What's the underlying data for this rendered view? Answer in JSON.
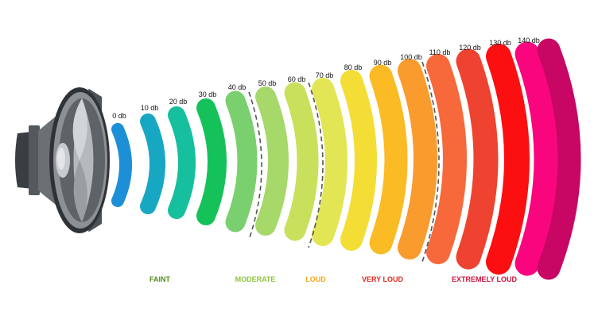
{
  "diagram": {
    "levels": [
      {
        "label": "0 db",
        "color": "#1d8fd6"
      },
      {
        "label": "10 db",
        "color": "#18a7c2"
      },
      {
        "label": "20 db",
        "color": "#16bf9d"
      },
      {
        "label": "30 db",
        "color": "#15c25a"
      },
      {
        "label": "40 db",
        "color": "#7ad06f"
      },
      {
        "label": "50 db",
        "color": "#a6d86a"
      },
      {
        "label": "60 db",
        "color": "#c9e05c"
      },
      {
        "label": "70 db",
        "color": "#e3e654"
      },
      {
        "label": "80 db",
        "color": "#f4dd35"
      },
      {
        "label": "90 db",
        "color": "#fbbb25"
      },
      {
        "label": "100 db",
        "color": "#fa9b2e"
      },
      {
        "label": "110 db",
        "color": "#f7683a"
      },
      {
        "label": "120 db",
        "color": "#ee4330"
      },
      {
        "label": "130 db",
        "color": "#fb0f10"
      },
      {
        "label": "140 db",
        "color": "#f9067e"
      },
      {
        "label": "",
        "color": "#c70763"
      }
    ],
    "categories": [
      {
        "label": "FAINT",
        "color": "#4f8f1a"
      },
      {
        "label": "MODERATE",
        "color": "#8fc43a"
      },
      {
        "label": "LOUD",
        "color": "#f2a81c"
      },
      {
        "label": "VERY LOUD",
        "color": "#e02820"
      },
      {
        "label": "EXTREMELY LOUD",
        "color": "#d2123c"
      }
    ],
    "separator_color": "#555555",
    "speaker_icon": "speaker-icon"
  }
}
